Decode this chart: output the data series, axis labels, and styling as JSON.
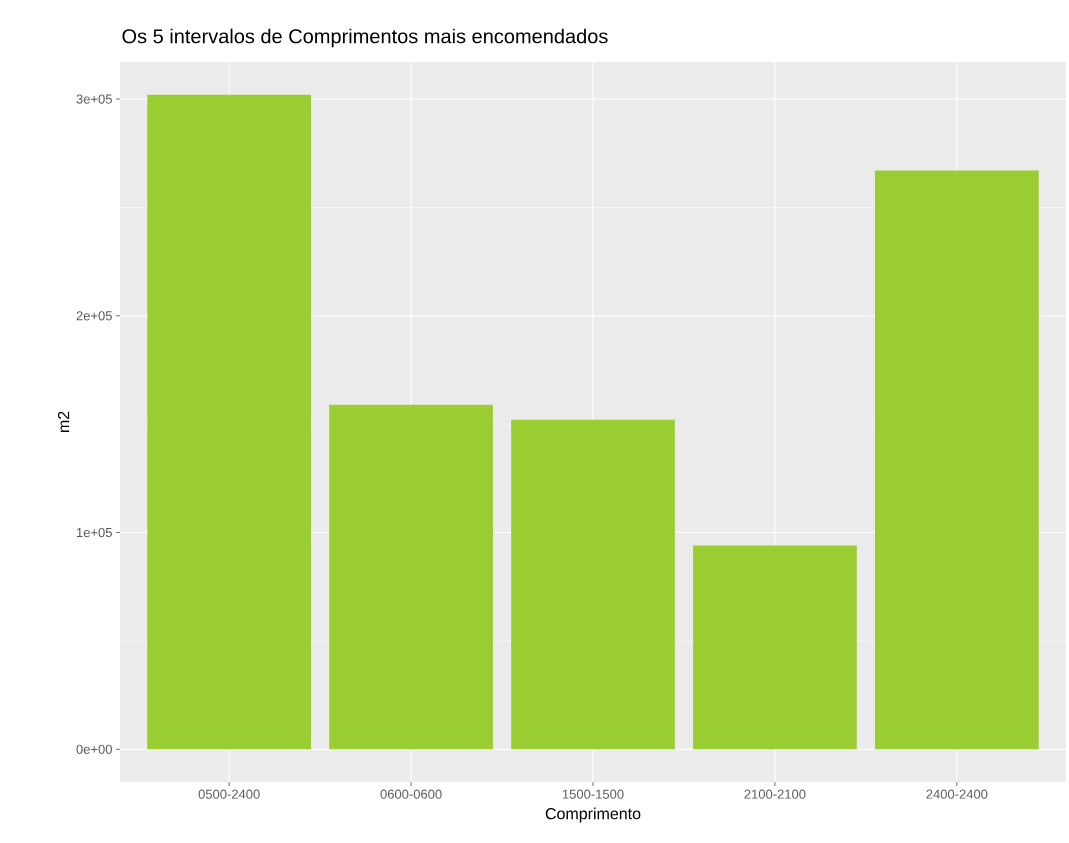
{
  "chart_data": {
    "type": "bar",
    "title": "Os 5 intervalos de Comprimentos mais encomendados",
    "xlabel": "Comprimento",
    "ylabel": "m2",
    "categories": [
      "0500-2400",
      "0600-0600",
      "1500-1500",
      "2100-2100",
      "2400-2400"
    ],
    "values": [
      302000,
      159000,
      152000,
      94000,
      267000
    ],
    "color": "#9acd32",
    "ylim": [
      -15100,
      317100
    ],
    "yticks": [
      {
        "value": 0,
        "label": "0e+00"
      },
      {
        "value": 100000,
        "label": "1e+05"
      },
      {
        "value": 200000,
        "label": "2e+05"
      },
      {
        "value": 300000,
        "label": "3e+05"
      }
    ],
    "grid": true
  }
}
